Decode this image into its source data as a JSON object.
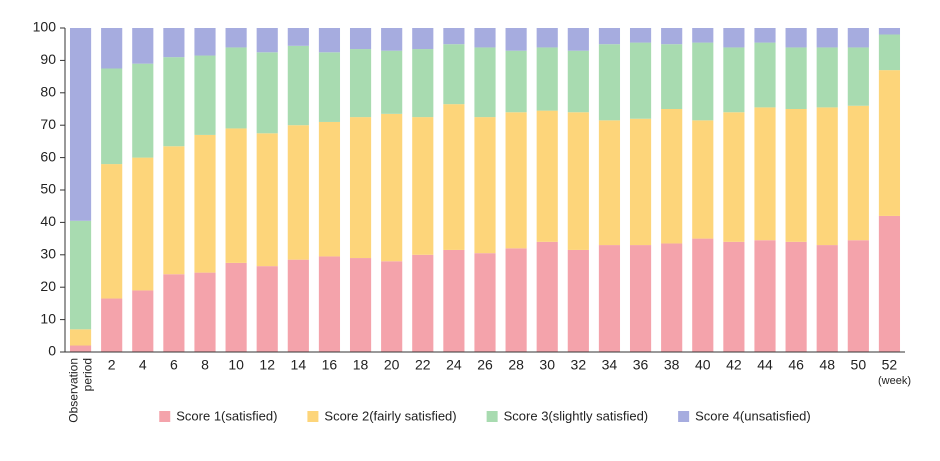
{
  "chart_data": {
    "type": "stacked_bar",
    "categories": [
      "Observation period",
      "2",
      "4",
      "6",
      "8",
      "10",
      "12",
      "14",
      "16",
      "18",
      "20",
      "22",
      "24",
      "26",
      "28",
      "30",
      "32",
      "34",
      "36",
      "38",
      "40",
      "42",
      "44",
      "46",
      "48",
      "50",
      "52"
    ],
    "x_unit_label": "(week)",
    "ylim": [
      0,
      100
    ],
    "yticks": [
      0,
      10,
      20,
      30,
      40,
      50,
      60,
      70,
      80,
      90,
      100
    ],
    "legend": "bottom",
    "series": [
      {
        "name": "Score 1(satisfied)",
        "color": "#f4a3ab",
        "values": [
          2,
          16.5,
          19,
          24,
          24.5,
          27.5,
          26.5,
          28.5,
          29.5,
          29,
          28,
          30,
          31.5,
          30.5,
          32,
          34,
          31.5,
          33,
          33,
          33.5,
          35,
          34,
          34.5,
          34,
          33,
          34.5,
          42
        ]
      },
      {
        "name": "Score 2(fairly satisfied)",
        "color": "#fdd57a",
        "values": [
          5,
          41.5,
          41,
          39.5,
          42.5,
          41.5,
          41,
          41.5,
          41.5,
          43.5,
          45.5,
          42.5,
          45,
          42,
          42,
          40.5,
          42.5,
          38.5,
          39,
          41.5,
          36.5,
          40,
          41,
          41,
          42.5,
          41.5,
          45
        ]
      },
      {
        "name": "Score 3(slightly satisfied)",
        "color": "#a8dbb0",
        "values": [
          33.5,
          29.5,
          29,
          27.5,
          24.5,
          25,
          25,
          24.5,
          21.5,
          21,
          19.5,
          21,
          18.5,
          21.5,
          19,
          19.5,
          19,
          23.5,
          23.5,
          20,
          24,
          20,
          20,
          19,
          18.5,
          18,
          11
        ]
      },
      {
        "name": "Score 4(unsatisfied)",
        "color": "#a6acdf",
        "values": [
          59.5,
          12.5,
          11,
          9,
          8.5,
          6,
          7.5,
          5.5,
          7.5,
          6.5,
          7,
          6.5,
          5,
          6,
          7,
          6,
          7,
          5,
          4.5,
          5,
          4.5,
          6,
          4.5,
          6,
          6,
          6,
          2
        ]
      }
    ]
  }
}
